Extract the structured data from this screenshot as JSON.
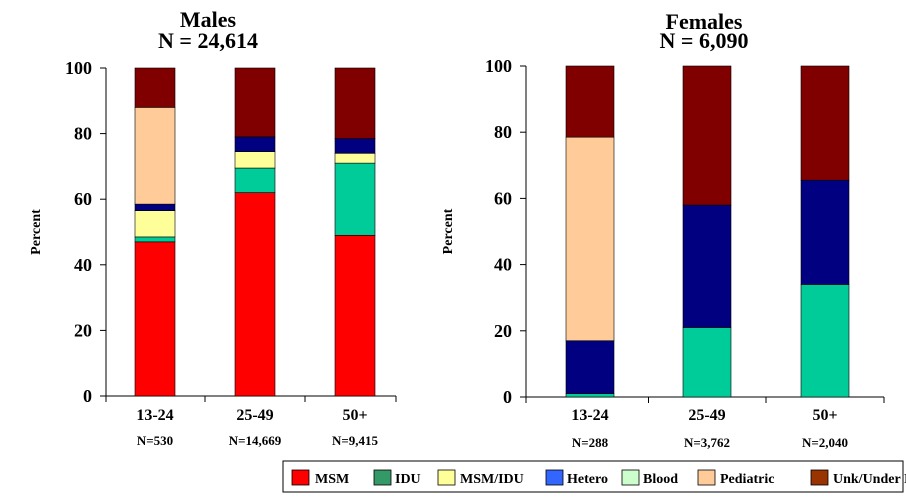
{
  "chart_data": [
    {
      "type": "bar",
      "stacked": true,
      "title": "Males",
      "subtitle": "N = 24,614",
      "ylabel": "Percent",
      "ylim": [
        0,
        100
      ],
      "yticks": [
        0,
        20,
        40,
        60,
        80,
        100
      ],
      "categories": [
        "13-24",
        "25-49",
        "50+"
      ],
      "category_counts": [
        "N=530",
        "N=14,669",
        "N=9,415"
      ],
      "series": [
        {
          "name": "MSM",
          "values": [
            47,
            62,
            49
          ]
        },
        {
          "name": "IDU",
          "values": [
            1.5,
            7.5,
            22
          ]
        },
        {
          "name": "MSM/IDU",
          "values": [
            8,
            5,
            3
          ]
        },
        {
          "name": "Hetero",
          "values": [
            2,
            4.5,
            4.5
          ]
        },
        {
          "name": "Blood",
          "values": [
            0,
            0,
            0
          ]
        },
        {
          "name": "Pediatric",
          "values": [
            29.5,
            0,
            0
          ]
        },
        {
          "name": "Unk/Under Investigation",
          "values": [
            12,
            21,
            21.5
          ]
        }
      ]
    },
    {
      "type": "bar",
      "stacked": true,
      "title": "Females",
      "subtitle": "N = 6,090",
      "ylabel": "Percent",
      "ylim": [
        0,
        100
      ],
      "yticks": [
        0,
        20,
        40,
        60,
        80,
        100
      ],
      "categories": [
        "13-24",
        "25-49",
        "50+"
      ],
      "category_counts": [
        "N=288",
        "N=3,762",
        "N=2,040"
      ],
      "series": [
        {
          "name": "MSM",
          "values": [
            0,
            0,
            0
          ]
        },
        {
          "name": "IDU",
          "values": [
            1,
            21,
            34
          ]
        },
        {
          "name": "MSM/IDU",
          "values": [
            0,
            0,
            0
          ]
        },
        {
          "name": "Hetero",
          "values": [
            16,
            37,
            31.5
          ]
        },
        {
          "name": "Blood",
          "values": [
            0,
            0,
            0
          ]
        },
        {
          "name": "Pediatric",
          "values": [
            61.5,
            0,
            0
          ]
        },
        {
          "name": "Unk/Under Investigation",
          "values": [
            21.5,
            42,
            34.5
          ]
        }
      ]
    }
  ],
  "legend": {
    "placement": "bottom",
    "items": [
      {
        "label": "MSM",
        "color": "#ff0000"
      },
      {
        "label": "IDU",
        "color": "#339966"
      },
      {
        "label": "MSM/IDU",
        "color": "#ffff99"
      },
      {
        "label": "Hetero",
        "color": "#3366ff"
      },
      {
        "label": "Blood",
        "color": "#ccffcc"
      },
      {
        "label": "Pediatric",
        "color": "#ffcc99"
      },
      {
        "label": "Unk/Under Investigation",
        "color": "#993300"
      }
    ]
  },
  "bar_colors": {
    "MSM": "#ff0000",
    "IDU": "#00cc99",
    "MSM/IDU": "#ffff99",
    "Hetero": "#000080",
    "Blood": "#ccffcc",
    "Pediatric": "#ffcc99",
    "Unk/Under Investigation": "#800000"
  }
}
